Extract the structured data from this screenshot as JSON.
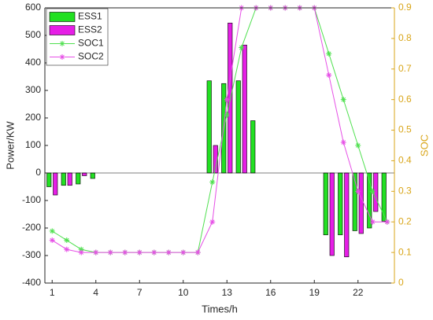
{
  "chart_data": {
    "type": "bar",
    "xlabel": "Times/h",
    "ylabel": "Power/KW",
    "y2label": "SOC",
    "x": [
      1,
      2,
      3,
      4,
      5,
      6,
      7,
      8,
      9,
      10,
      11,
      12,
      13,
      14,
      15,
      16,
      17,
      18,
      19,
      20,
      21,
      22,
      23,
      24
    ],
    "xlim": [
      0.5,
      24.5
    ],
    "xticks": [
      1,
      4,
      7,
      10,
      13,
      16,
      19,
      22
    ],
    "ylim": [
      -400,
      600
    ],
    "yticks": [
      -400,
      -300,
      -200,
      -100,
      0,
      100,
      200,
      300,
      400,
      500,
      600
    ],
    "y2lim": [
      0,
      0.9
    ],
    "y2ticks": [
      0,
      0.1,
      0.2,
      0.3,
      0.4,
      0.5,
      0.6,
      0.7,
      0.8,
      0.9
    ],
    "y2color": "#d9a61a",
    "legend": "upper left",
    "series": [
      {
        "name": "ESS1",
        "type": "bar",
        "color": "#22e022",
        "values": [
          -50,
          -45,
          -40,
          -20,
          0,
          0,
          0,
          0,
          0,
          0,
          0,
          335,
          325,
          335,
          190,
          0,
          0,
          0,
          0,
          -225,
          -225,
          -210,
          -200,
          -175
        ]
      },
      {
        "name": "ESS2",
        "type": "bar",
        "color": "#e61ee6",
        "values": [
          -80,
          -45,
          -10,
          0,
          0,
          0,
          0,
          0,
          0,
          0,
          0,
          100,
          545,
          465,
          0,
          0,
          0,
          0,
          0,
          -300,
          -305,
          -220,
          -140,
          0
        ]
      },
      {
        "name": "SOC1",
        "type": "line",
        "axis": "y2",
        "color": "#50e050",
        "values": [
          0.17,
          0.14,
          0.11,
          0.1,
          0.1,
          0.1,
          0.1,
          0.1,
          0.1,
          0.1,
          0.1,
          0.33,
          0.55,
          0.77,
          0.9,
          0.9,
          0.9,
          0.9,
          0.9,
          0.75,
          0.6,
          0.45,
          0.3,
          0.2
        ]
      },
      {
        "name": "SOC2",
        "type": "line",
        "axis": "y2",
        "color": "#e650e6",
        "values": [
          0.14,
          0.11,
          0.1,
          0.1,
          0.1,
          0.1,
          0.1,
          0.1,
          0.1,
          0.1,
          0.1,
          0.2,
          0.6,
          0.9,
          0.9,
          0.9,
          0.9,
          0.9,
          0.9,
          0.68,
          0.46,
          0.3,
          0.2,
          0.2
        ]
      }
    ]
  }
}
